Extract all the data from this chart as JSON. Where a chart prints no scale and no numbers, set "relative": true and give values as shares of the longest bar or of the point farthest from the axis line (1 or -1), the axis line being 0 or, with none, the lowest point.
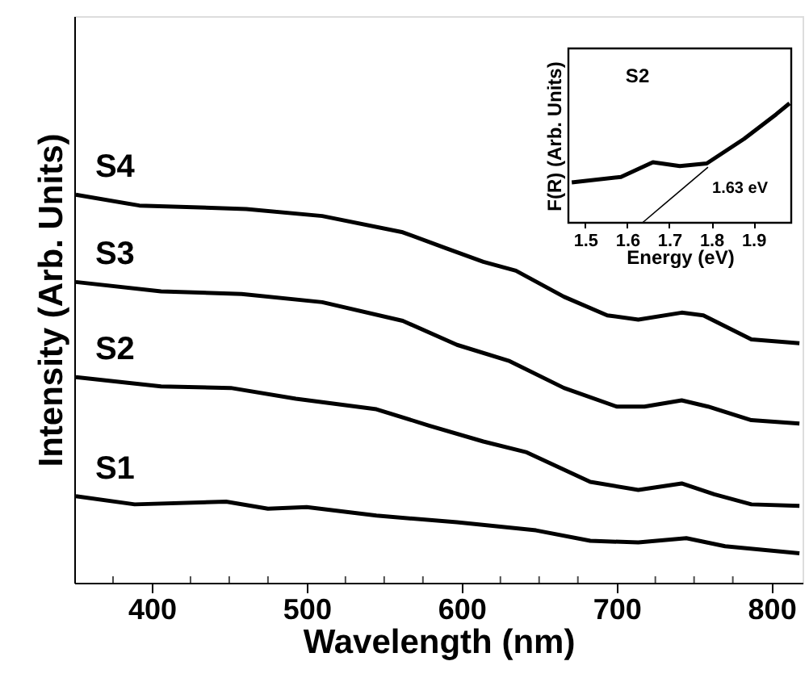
{
  "chart_data": [
    {
      "type": "line",
      "xlabel": "Wavelength (nm)",
      "ylabel": "Intensity (Arb. Units)",
      "relative": true,
      "grid": false,
      "xlim": [
        350,
        820
      ],
      "xticks": [
        {
          "value": 375,
          "label": null
        },
        400,
        {
          "value": 425,
          "label": null
        },
        {
          "value": 450,
          "label": null
        },
        {
          "value": 475,
          "label": null
        },
        500,
        {
          "value": 525,
          "label": null
        },
        {
          "value": 550,
          "label": null
        },
        {
          "value": 575,
          "label": null
        },
        600,
        {
          "value": 625,
          "label": null
        },
        {
          "value": 650,
          "label": null
        },
        {
          "value": 675,
          "label": null
        },
        700,
        {
          "value": 725,
          "label": null
        },
        {
          "value": 750,
          "label": null
        },
        {
          "value": 775,
          "label": null
        },
        800
      ],
      "series": [
        {
          "name": "S1",
          "color": "#000000",
          "x": [
            351,
            389,
            448,
            475,
            500,
            545,
            597,
            648,
            683,
            714,
            745,
            770,
            818
          ],
          "values": [
            0.223,
            0.202,
            0.209,
            0.191,
            0.195,
            0.173,
            0.156,
            0.135,
            0.108,
            0.104,
            0.115,
            0.094,
            0.076
          ]
        },
        {
          "name": "S2",
          "color": "#000000",
          "x": [
            351,
            406,
            451,
            493,
            545,
            579,
            614,
            642,
            683,
            714,
            742,
            763,
            787,
            818
          ],
          "values": [
            0.53,
            0.506,
            0.502,
            0.474,
            0.447,
            0.405,
            0.364,
            0.336,
            0.26,
            0.239,
            0.256,
            0.228,
            0.202,
            0.198
          ]
        },
        {
          "name": "S3",
          "color": "#000000",
          "x": [
            351,
            406,
            458,
            510,
            562,
            597,
            631,
            666,
            700,
            718,
            742,
            759,
            787,
            818
          ],
          "values": [
            0.775,
            0.751,
            0.744,
            0.723,
            0.675,
            0.613,
            0.571,
            0.502,
            0.454,
            0.454,
            0.47,
            0.454,
            0.419,
            0.41
          ]
        },
        {
          "name": "S4",
          "color": "#000000",
          "x": [
            351,
            392,
            461,
            510,
            562,
            590,
            614,
            635,
            666,
            694,
            714,
            742,
            756,
            787,
            818
          ],
          "values": [
            1.0,
            0.972,
            0.963,
            0.945,
            0.903,
            0.862,
            0.827,
            0.804,
            0.737,
            0.689,
            0.678,
            0.696,
            0.689,
            0.627,
            0.617
          ]
        }
      ]
    },
    {
      "type": "line",
      "title": "S2",
      "xlabel": "Energy (eV)",
      "ylabel": "F(R) (Arb. Units)",
      "relative": true,
      "grid": false,
      "xlim": [
        1.46,
        1.99
      ],
      "xticks": [
        1.5,
        1.6,
        1.7,
        1.8,
        1.9
      ],
      "annotations": [
        "1.63 eV"
      ],
      "series": [
        {
          "color": "#000000",
          "x": [
            1.468,
            1.585,
            1.661,
            1.725,
            1.789,
            1.878,
            1.954,
            1.986
          ],
          "values": [
            0.338,
            0.384,
            0.507,
            0.475,
            0.497,
            0.703,
            0.908,
            1.0
          ]
        },
        {
          "type": "line",
          "color": "#000000",
          "x": [
            1.636,
            1.792
          ],
          "values": [
            0,
            0.466
          ]
        }
      ]
    }
  ]
}
